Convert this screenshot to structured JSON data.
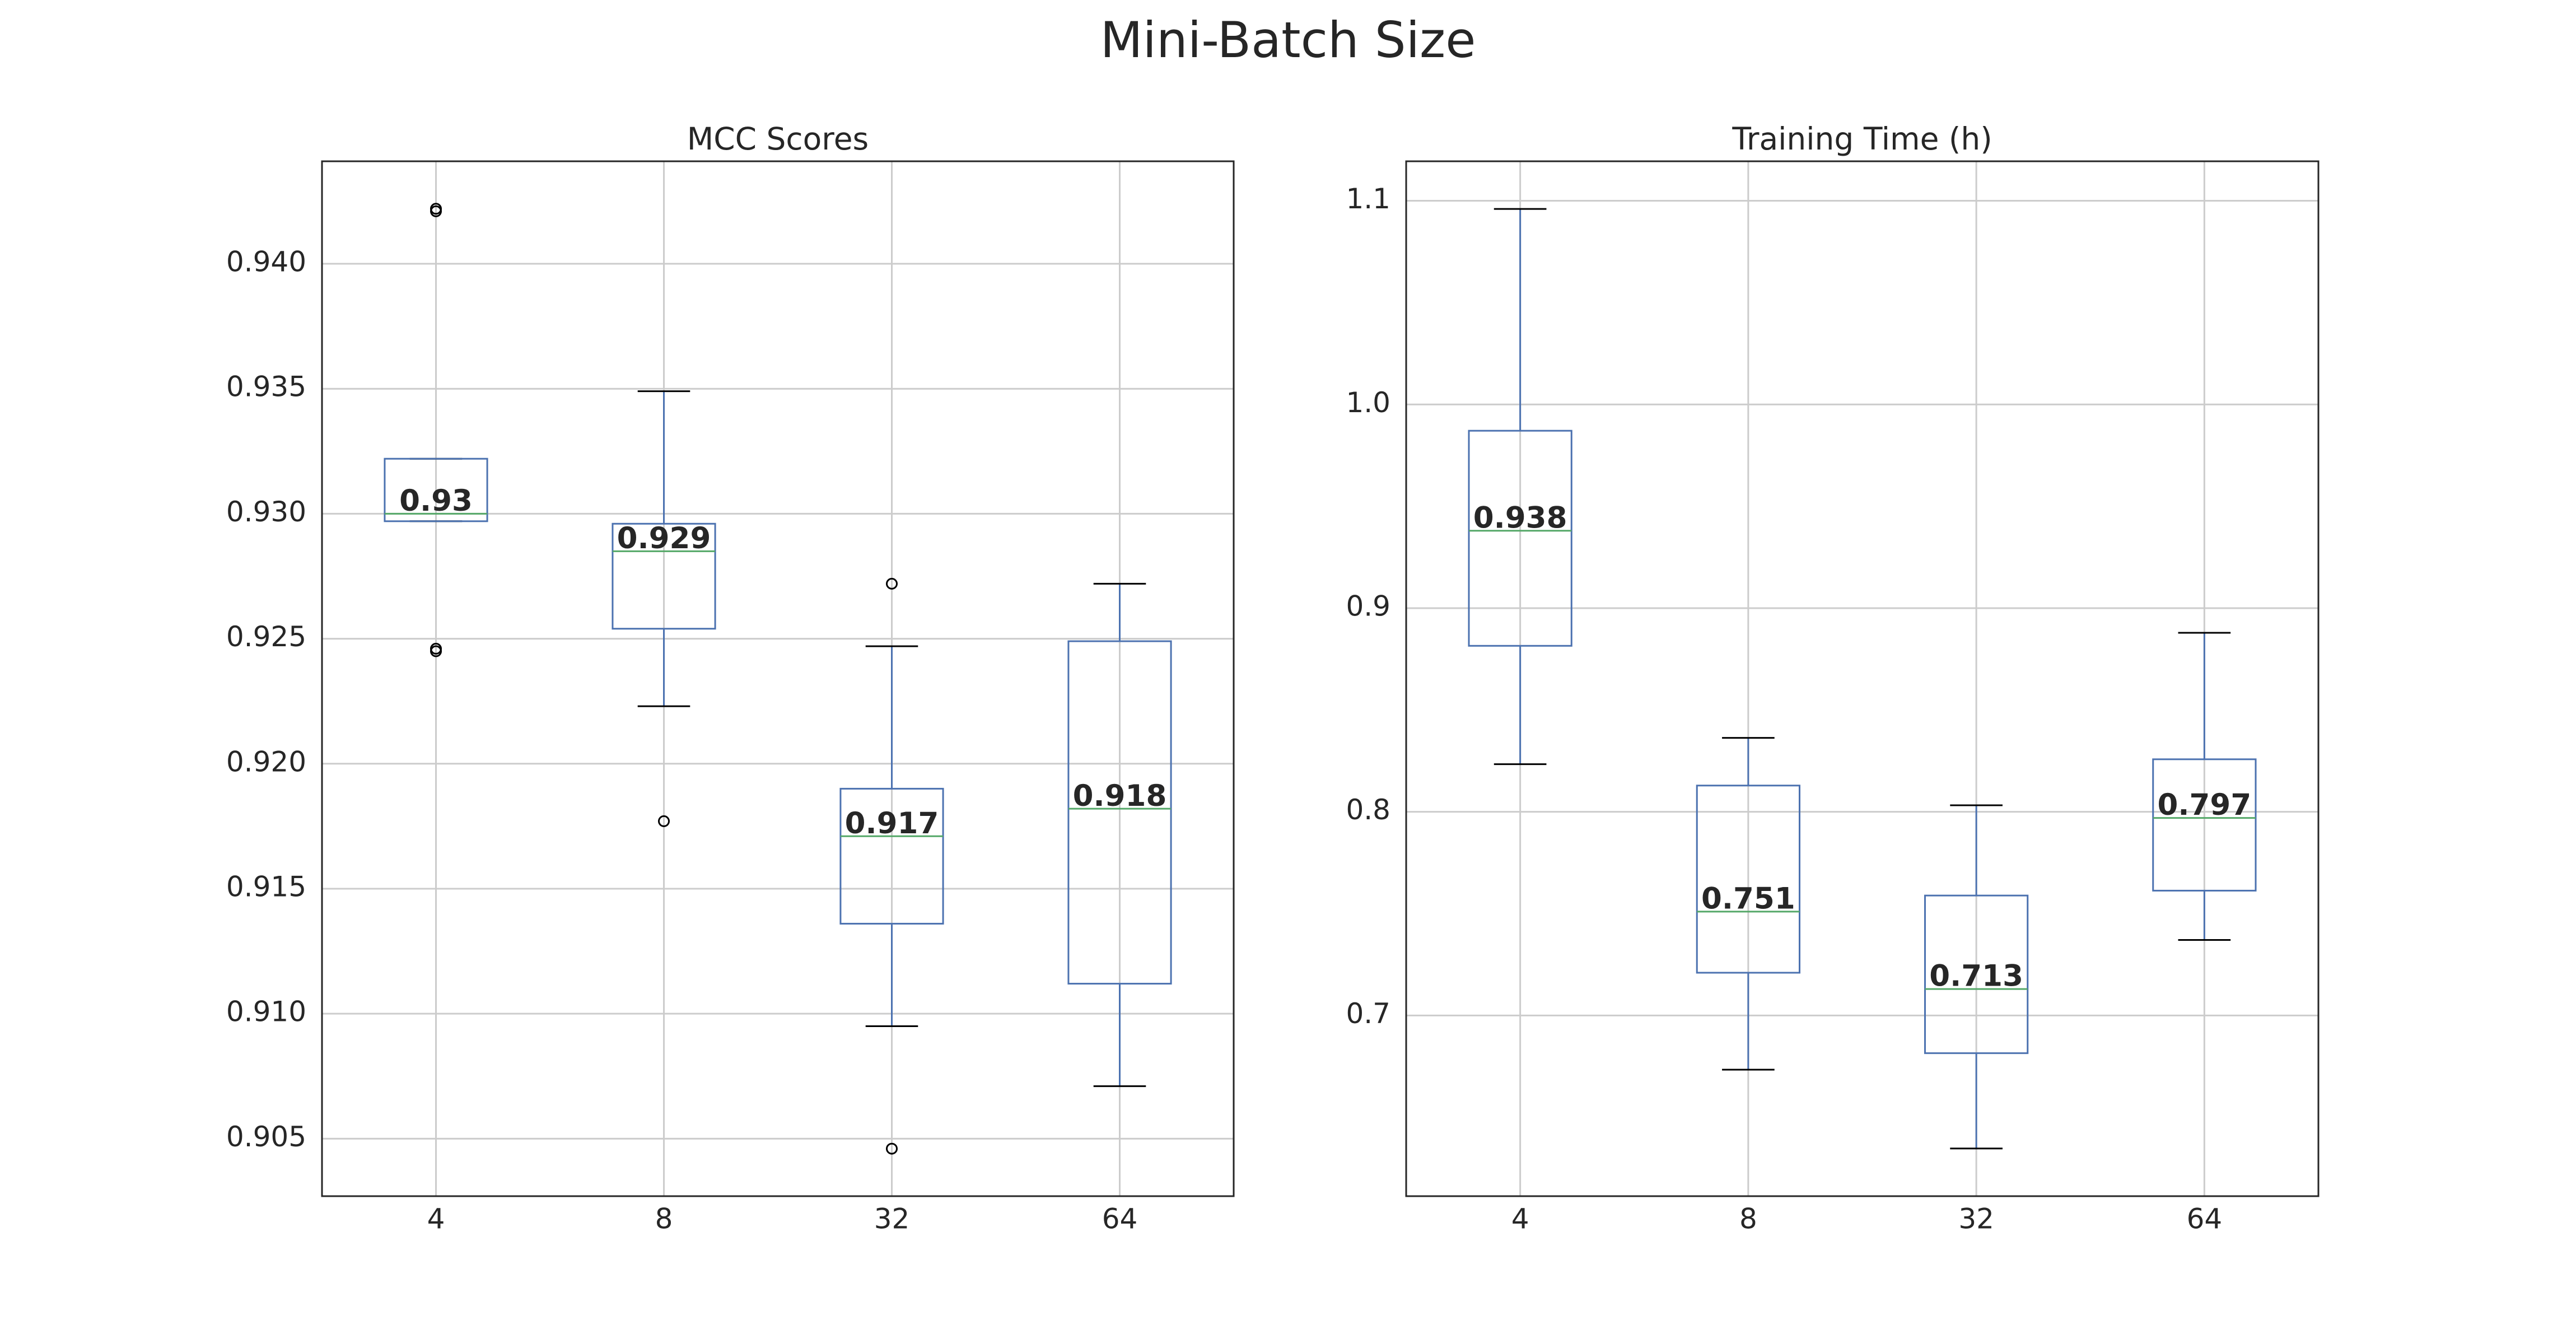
{
  "title": "Mini-Batch Size",
  "chart_data": [
    {
      "type": "box",
      "title": "MCC Scores",
      "categories": [
        "4",
        "8",
        "32",
        "64"
      ],
      "color": "#4c72b0",
      "median_color": "#55a868",
      "cap_color": "#000000",
      "flier_color": "#000000",
      "grid": true,
      "ylim": [
        0.9027,
        0.9441
      ],
      "yticks": [
        {
          "value": 0.905,
          "label": "0.905"
        },
        {
          "value": 0.91,
          "label": "0.910"
        },
        {
          "value": 0.915,
          "label": "0.915"
        },
        {
          "value": 0.92,
          "label": "0.920"
        },
        {
          "value": 0.925,
          "label": "0.925"
        },
        {
          "value": 0.93,
          "label": "0.930"
        },
        {
          "value": 0.935,
          "label": "0.935"
        },
        {
          "value": 0.94,
          "label": "0.940"
        }
      ],
      "boxes": [
        {
          "whislo": 0.9297,
          "q1": 0.9297,
          "med": 0.93,
          "q3": 0.9322,
          "whishi": 0.9322,
          "fliers": [
            0.9422,
            0.9421,
            0.9246,
            0.9245
          ]
        },
        {
          "whislo": 0.9223,
          "q1": 0.9254,
          "med": 0.9285,
          "q3": 0.9296,
          "whishi": 0.9349,
          "fliers": [
            0.9177
          ]
        },
        {
          "whislo": 0.9095,
          "q1": 0.9136,
          "med": 0.9171,
          "q3": 0.919,
          "whishi": 0.9247,
          "fliers": [
            0.9272,
            0.9046
          ]
        },
        {
          "whislo": 0.9071,
          "q1": 0.9112,
          "med": 0.9182,
          "q3": 0.9249,
          "whishi": 0.9272,
          "fliers": []
        }
      ],
      "value_labels": [
        "0.93",
        "0.929",
        "0.917",
        "0.918"
      ]
    },
    {
      "type": "box",
      "title": "Training Time (h)",
      "categories": [
        "4",
        "8",
        "32",
        "64"
      ],
      "color": "#4c72b0",
      "median_color": "#55a868",
      "cap_color": "#000000",
      "flier_color": "#000000",
      "grid": true,
      "ylim": [
        0.6113,
        1.1194
      ],
      "yticks": [
        0.7,
        0.8,
        0.9,
        {
          "value": 1.0,
          "label": "1.0"
        },
        1.1
      ],
      "boxes": [
        {
          "whislo": 0.8234,
          "q1": 0.8815,
          "med": 0.938,
          "q3": 0.9871,
          "whishi": 1.096,
          "fliers": []
        },
        {
          "whislo": 0.6734,
          "q1": 0.721,
          "med": 0.751,
          "q3": 0.8129,
          "whishi": 0.8363,
          "fliers": []
        },
        {
          "whislo": 0.6347,
          "q1": 0.6815,
          "med": 0.713,
          "q3": 0.7589,
          "whishi": 0.8032,
          "fliers": []
        },
        {
          "whislo": 0.7371,
          "q1": 0.7613,
          "med": 0.797,
          "q3": 0.8258,
          "whishi": 0.8879,
          "fliers": []
        }
      ]
    }
  ]
}
